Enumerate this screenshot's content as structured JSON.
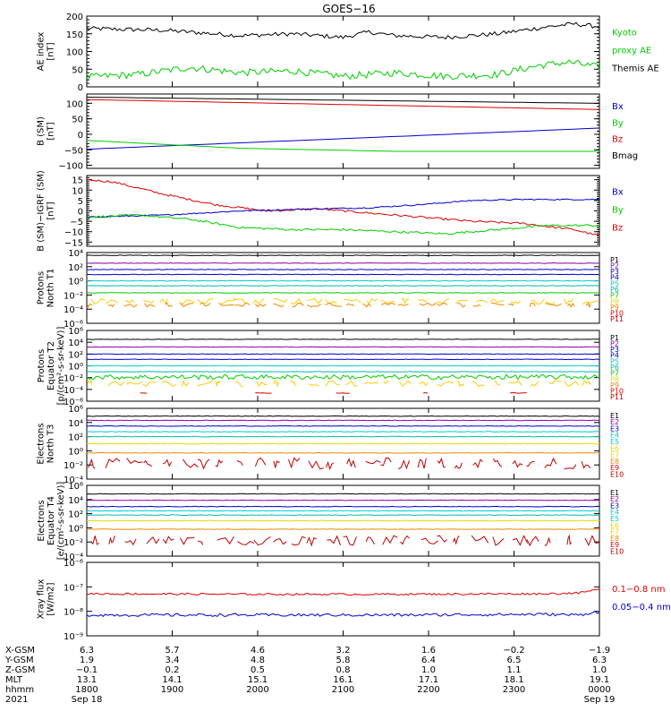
{
  "title": "GOES−16",
  "colors": {
    "black": "#000000",
    "red": "#dd0000",
    "green": "#00cc00",
    "blue": "#0000cc",
    "cyan": "#00cccc",
    "teal": "#00bbaa",
    "yellow": "#dddd00",
    "orange": "#ee8800",
    "darkred": "#bb0000",
    "gold": "#ffcc00",
    "purple": "#8800aa"
  },
  "chart_data": [
    {
      "type": "line",
      "ylabel": [
        "AE index",
        "[nT]"
      ],
      "ylim": [
        0,
        200
      ],
      "yscale": "linear",
      "yticks": [
        0,
        50,
        100,
        150,
        200
      ],
      "yticklabels": [
        "0",
        "50",
        "100",
        "150",
        "200"
      ],
      "legend": [
        {
          "text": "Kyoto",
          "color": "green"
        },
        {
          "text": "proxy AE",
          "color": "green"
        },
        {
          "text": "Themis AE",
          "color": "black"
        }
      ],
      "series": [
        {
          "name": "Themis AE",
          "color": "black",
          "style": "noisy",
          "amp": 6,
          "x": [
            0,
            0.15,
            0.3,
            0.4,
            0.5,
            0.55,
            0.6,
            0.7,
            0.8,
            0.9,
            0.95,
            1.0
          ],
          "y": [
            165,
            160,
            145,
            150,
            140,
            155,
            145,
            140,
            150,
            170,
            178,
            170
          ]
        },
        {
          "name": "Kyoto proxy AE",
          "color": "green",
          "style": "noisy",
          "amp": 10,
          "x": [
            0,
            0.1,
            0.2,
            0.3,
            0.4,
            0.5,
            0.6,
            0.7,
            0.8,
            0.88,
            0.94,
            1.0
          ],
          "y": [
            28,
            35,
            55,
            40,
            45,
            30,
            40,
            30,
            35,
            60,
            70,
            55
          ]
        }
      ]
    },
    {
      "type": "line",
      "ylabel": [
        "B (SM)",
        "[nT]"
      ],
      "ylim": [
        -110,
        130
      ],
      "yscale": "linear",
      "yticks": [
        -100,
        -50,
        0,
        50,
        100
      ],
      "yticklabels": [
        "−100",
        "−50",
        "0",
        "50",
        "100"
      ],
      "legend": [
        {
          "text": "Bx",
          "color": "blue"
        },
        {
          "text": "By",
          "color": "green"
        },
        {
          "text": "Bz",
          "color": "red"
        },
        {
          "text": "Bmag",
          "color": "black"
        }
      ],
      "series": [
        {
          "name": "Bmag",
          "color": "black",
          "style": "smooth",
          "x": [
            0,
            1
          ],
          "y": [
            120,
            100
          ]
        },
        {
          "name": "Bz",
          "color": "red",
          "style": "smooth",
          "x": [
            0,
            1
          ],
          "y": [
            112,
            80
          ]
        },
        {
          "name": "Bx",
          "color": "blue",
          "style": "smooth",
          "x": [
            0,
            1
          ],
          "y": [
            -48,
            20
          ]
        },
        {
          "name": "By",
          "color": "green",
          "style": "smooth",
          "x": [
            0,
            0.3,
            0.6,
            1
          ],
          "y": [
            -20,
            -45,
            -55,
            -55
          ]
        }
      ]
    },
    {
      "type": "line",
      "ylabel": [
        "B (SM)−IGRF (SM)",
        "[nT]"
      ],
      "ylim": [
        -17,
        17
      ],
      "yscale": "linear",
      "yticks": [
        -15,
        -10,
        -5,
        0,
        5,
        10,
        15
      ],
      "yticklabels": [
        "−15",
        "−10",
        "−5",
        "0",
        "5",
        "10",
        "15"
      ],
      "legend": [
        {
          "text": "Bx",
          "color": "blue"
        },
        {
          "text": "By",
          "color": "green"
        },
        {
          "text": "Bz",
          "color": "red"
        }
      ],
      "series": [
        {
          "name": "Bz",
          "color": "red",
          "style": "noisy",
          "amp": 0.5,
          "x": [
            0,
            0.05,
            0.15,
            0.25,
            0.35,
            0.45,
            0.55,
            0.65,
            0.75,
            0.85,
            0.95,
            1.0
          ],
          "y": [
            15,
            14,
            8,
            3,
            0,
            1,
            -1,
            -3,
            -5,
            -6,
            -9,
            -12
          ]
        },
        {
          "name": "Bx",
          "color": "blue",
          "style": "noisy",
          "amp": 0.3,
          "x": [
            0,
            0.15,
            0.3,
            0.45,
            0.55,
            0.65,
            0.75,
            0.85,
            1.0
          ],
          "y": [
            -3,
            -2,
            0,
            1,
            1.5,
            3,
            5,
            5.5,
            5.5
          ]
        },
        {
          "name": "By",
          "color": "green",
          "style": "noisy",
          "amp": 0.5,
          "x": [
            0,
            0.1,
            0.2,
            0.3,
            0.4,
            0.5,
            0.6,
            0.7,
            0.8,
            0.9,
            1.0
          ],
          "y": [
            -3,
            -2,
            -4,
            -8,
            -9,
            -9,
            -10,
            -11,
            -9,
            -7,
            -7
          ]
        }
      ]
    },
    {
      "type": "line",
      "ylabel": [
        "Protons",
        "North T1"
      ],
      "ylim": [
        -6,
        4
      ],
      "yscale": "log",
      "yticks": [
        -6,
        -4,
        -2,
        0,
        2,
        4
      ],
      "yticklabels": [
        "10⁻⁶",
        "10⁻⁴",
        "10⁻²",
        "10⁰",
        "10²",
        "10⁴"
      ],
      "legend": [
        {
          "text": "P1",
          "color": "black"
        },
        {
          "text": "P2",
          "color": "purple"
        },
        {
          "text": "P3",
          "color": "blue"
        },
        {
          "text": "P4",
          "color": "blue"
        },
        {
          "text": "P5",
          "color": "cyan"
        },
        {
          "text": "P6",
          "color": "teal"
        },
        {
          "text": "P7",
          "color": "green"
        },
        {
          "text": "P8",
          "color": "yellow"
        },
        {
          "text": "P9",
          "color": "orange"
        },
        {
          "text": "P10",
          "color": "red"
        },
        {
          "text": "P11",
          "color": "darkred"
        }
      ],
      "series": [
        {
          "name": "P1",
          "color": "black",
          "style": "flat",
          "level": 3.6
        },
        {
          "name": "P2",
          "color": "purple",
          "style": "flat",
          "level": 2.5
        },
        {
          "name": "P3",
          "color": "blue",
          "style": "flat",
          "level": 1.6
        },
        {
          "name": "P4",
          "color": "blue",
          "style": "flat",
          "level": 0.9
        },
        {
          "name": "P5",
          "color": "cyan",
          "style": "flat",
          "level": 0.0
        },
        {
          "name": "P6",
          "color": "teal",
          "style": "flat",
          "level": -0.7
        },
        {
          "name": "P7",
          "color": "green",
          "style": "flat",
          "level": -1.7
        },
        {
          "name": "P8",
          "color": "gold",
          "style": "broken",
          "level": -2.9,
          "amp": 0.4
        },
        {
          "name": "P9",
          "color": "orange",
          "style": "broken",
          "level": -3.4,
          "amp": 0.3
        }
      ]
    },
    {
      "type": "line",
      "ylabel": [
        "Protons",
        "Equator T2",
        "[p/(cm²-s-sr-keV)]"
      ],
      "ylim": [
        -6,
        6
      ],
      "yscale": "log",
      "yticks": [
        -6,
        -4,
        -2,
        0,
        2,
        4,
        6
      ],
      "yticklabels": [
        "10⁻⁶",
        "10⁻⁴",
        "10⁻²",
        "10⁰",
        "10²",
        "10⁴",
        "10⁶"
      ],
      "legend": [
        {
          "text": "P1",
          "color": "black"
        },
        {
          "text": "P2",
          "color": "purple"
        },
        {
          "text": "P3",
          "color": "blue"
        },
        {
          "text": "P4",
          "color": "blue"
        },
        {
          "text": "P5",
          "color": "cyan"
        },
        {
          "text": "P6",
          "color": "teal"
        },
        {
          "text": "P7",
          "color": "green"
        },
        {
          "text": "P8",
          "color": "yellow"
        },
        {
          "text": "P9",
          "color": "orange"
        },
        {
          "text": "P10",
          "color": "red"
        },
        {
          "text": "P11",
          "color": "darkred"
        }
      ],
      "series": [
        {
          "name": "P1",
          "color": "black",
          "style": "flat",
          "level": 4.5
        },
        {
          "name": "P2",
          "color": "purple",
          "style": "flat",
          "level": 3.2
        },
        {
          "name": "P3",
          "color": "blue",
          "style": "flat",
          "level": 2.0
        },
        {
          "name": "P4",
          "color": "blue",
          "style": "flat",
          "level": 1.1
        },
        {
          "name": "P5",
          "color": "cyan",
          "style": "flat",
          "level": 0.0
        },
        {
          "name": "P6",
          "color": "teal",
          "style": "flat",
          "level": -1.0
        },
        {
          "name": "P7",
          "color": "green",
          "style": "noisy",
          "level": -1.9,
          "amp": 0.4
        },
        {
          "name": "P8",
          "color": "gold",
          "style": "broken",
          "level": -3.0,
          "amp": 0.5
        },
        {
          "name": "P10",
          "color": "red",
          "style": "broken",
          "level": -4.6,
          "amp": 0.1,
          "sparse": true
        }
      ]
    },
    {
      "type": "line",
      "ylabel": [
        "Electrons",
        "North T3"
      ],
      "ylim": [
        -4,
        6
      ],
      "yscale": "log",
      "yticks": [
        -4,
        -2,
        0,
        2,
        4,
        6
      ],
      "yticklabels": [
        "10⁻⁴",
        "10⁻²",
        "10⁰",
        "10²",
        "10⁴",
        "10⁶"
      ],
      "legend": [
        {
          "text": "E1",
          "color": "black"
        },
        {
          "text": "E2",
          "color": "purple"
        },
        {
          "text": "E3",
          "color": "blue"
        },
        {
          "text": "E4",
          "color": "cyan"
        },
        {
          "text": "E5",
          "color": "cyan"
        },
        {
          "text": "E6",
          "color": "yellow"
        },
        {
          "text": "E7",
          "color": "yellow"
        },
        {
          "text": "E8",
          "color": "orange"
        },
        {
          "text": "E9",
          "color": "red"
        },
        {
          "text": "E10",
          "color": "darkred"
        }
      ],
      "series": [
        {
          "name": "E1",
          "color": "black",
          "style": "flat",
          "level": 4.9
        },
        {
          "name": "E2",
          "color": "purple",
          "style": "flat",
          "level": 4.3
        },
        {
          "name": "E3",
          "color": "blue",
          "style": "flat",
          "level": 3.5
        },
        {
          "name": "E4",
          "color": "cyan",
          "style": "flat",
          "level": 2.7
        },
        {
          "name": "E5",
          "color": "teal",
          "style": "flat",
          "level": 2.0
        },
        {
          "name": "E6",
          "color": "yellow",
          "style": "flat",
          "level": 1.0
        },
        {
          "name": "E8",
          "color": "orange",
          "style": "flat",
          "level": -0.3
        },
        {
          "name": "E9",
          "color": "darkred",
          "style": "broken",
          "level": -1.8,
          "amp": 0.8
        }
      ]
    },
    {
      "type": "line",
      "ylabel": [
        "Electrons",
        "Equator T4",
        "[e/(cm²-s-sr-keV)]"
      ],
      "ylim": [
        -4,
        6
      ],
      "yscale": "log",
      "yticks": [
        -4,
        -2,
        0,
        2,
        4,
        6
      ],
      "yticklabels": [
        "10⁻⁴",
        "10⁻²",
        "10⁰",
        "10²",
        "10⁴",
        "10⁶"
      ],
      "legend": [
        {
          "text": "E1",
          "color": "black"
        },
        {
          "text": "E2",
          "color": "purple"
        },
        {
          "text": "E3",
          "color": "blue"
        },
        {
          "text": "E4",
          "color": "cyan"
        },
        {
          "text": "E5",
          "color": "cyan"
        },
        {
          "text": "E6",
          "color": "yellow"
        },
        {
          "text": "E7",
          "color": "yellow"
        },
        {
          "text": "E8",
          "color": "orange"
        },
        {
          "text": "E9",
          "color": "red"
        },
        {
          "text": "E10",
          "color": "darkred"
        }
      ],
      "series": [
        {
          "name": "E1",
          "color": "black",
          "style": "flat",
          "level": 4.8
        },
        {
          "name": "E2",
          "color": "purple",
          "style": "flat",
          "level": 3.9
        },
        {
          "name": "E3",
          "color": "blue",
          "style": "flat",
          "level": 3.0
        },
        {
          "name": "E4",
          "color": "cyan",
          "style": "flat",
          "level": 2.4
        },
        {
          "name": "E5",
          "color": "teal",
          "style": "flat",
          "level": 1.8
        },
        {
          "name": "E6",
          "color": "yellow",
          "style": "flat",
          "level": 1.0
        },
        {
          "name": "E8",
          "color": "orange",
          "style": "flat",
          "level": -0.2
        },
        {
          "name": "E9",
          "color": "darkred",
          "style": "broken",
          "level": -1.8,
          "amp": 0.7
        }
      ]
    },
    {
      "type": "line",
      "ylabel": [
        "Xray flux",
        "[W/m2]"
      ],
      "ylim": [
        -9,
        -6
      ],
      "yscale": "log",
      "yticks": [
        -9,
        -8,
        -7,
        -6
      ],
      "yticklabels": [
        "10⁻⁹",
        "10⁻⁸",
        "10⁻⁷",
        "10⁻⁶"
      ],
      "legend": [
        {
          "text": "0.1−0.8 nm",
          "color": "red"
        },
        {
          "text": "0.05−0.4 nm",
          "color": "blue"
        }
      ],
      "series": [
        {
          "name": "0.1−0.8 nm",
          "color": "red",
          "style": "noisy",
          "amp": 0.04,
          "x": [
            0,
            0.3,
            0.6,
            0.9,
            0.96,
            1.0
          ],
          "y": [
            -7.28,
            -7.3,
            -7.3,
            -7.28,
            -7.25,
            -7.1
          ]
        },
        {
          "name": "0.05−0.4 nm",
          "color": "blue",
          "style": "noisy",
          "amp": 0.06,
          "x": [
            0,
            0.3,
            0.6,
            0.9,
            0.96,
            1.0
          ],
          "y": [
            -8.15,
            -8.15,
            -8.15,
            -8.12,
            -8.15,
            -8.0
          ]
        }
      ]
    }
  ],
  "x_axis": {
    "row_labels": [
      "X-GSM",
      "Y-GSM",
      "Z-GSM",
      "MLT",
      "hhmm",
      "2021"
    ],
    "ticks": [
      {
        "X-GSM": "6.3",
        "Y-GSM": "1.9",
        "Z-GSM": "−0.1",
        "MLT": "13.1",
        "hhmm": "1800",
        "date": "Sep 18"
      },
      {
        "X-GSM": "5.7",
        "Y-GSM": "3.4",
        "Z-GSM": "0.2",
        "MLT": "14.1",
        "hhmm": "1900",
        "date": ""
      },
      {
        "X-GSM": "4.6",
        "Y-GSM": "4.8",
        "Z-GSM": "0.5",
        "MLT": "15.1",
        "hhmm": "2000",
        "date": ""
      },
      {
        "X-GSM": "3.2",
        "Y-GSM": "5.8",
        "Z-GSM": "0.8",
        "MLT": "16.1",
        "hhmm": "2100",
        "date": ""
      },
      {
        "X-GSM": "1.6",
        "Y-GSM": "6.4",
        "Z-GSM": "1.0",
        "MLT": "17.1",
        "hhmm": "2200",
        "date": ""
      },
      {
        "X-GSM": "−0.2",
        "Y-GSM": "6.5",
        "Z-GSM": "1.1",
        "MLT": "18.1",
        "hhmm": "2300",
        "date": ""
      },
      {
        "X-GSM": "−1.9",
        "Y-GSM": "6.3",
        "Z-GSM": "1.0",
        "MLT": "19.1",
        "hhmm": "0000",
        "date": "Sep 19"
      }
    ]
  }
}
